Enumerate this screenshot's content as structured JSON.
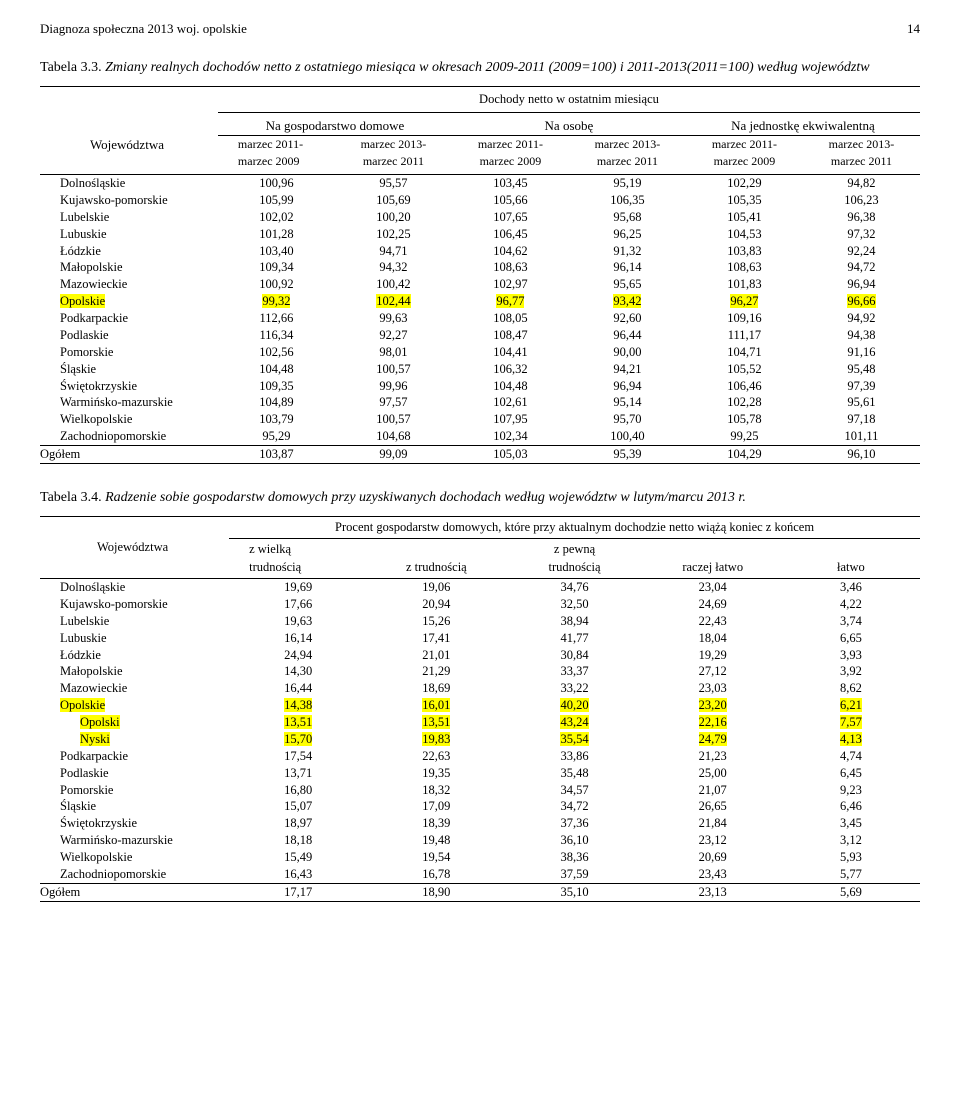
{
  "header": {
    "title": "Diagnoza społeczna 2013 woj. opolskie",
    "page": "14"
  },
  "table1": {
    "caption_num": "Tabela 3.3. ",
    "caption_text": "Zmiany realnych dochodów netto z ostatniego miesiąca w okresach 2009-2011 (2009=100) i 2011-2013(2011=100) według województw",
    "super_header": "Dochody netto w ostatnim miesiącu",
    "col1_label": "Województwa",
    "group_labels": [
      "Na gospodarstwo domowe",
      "Na osobę",
      "Na jednostkę ekwiwalentną"
    ],
    "period_a": "marzec 2011-\nmarzec 2009",
    "period_b": "marzec 2013-\nmarzec 2011",
    "rows": [
      {
        "name": "Dolnośląskie",
        "v": [
          "100,96",
          "95,57",
          "103,45",
          "95,19",
          "102,29",
          "94,82"
        ],
        "hl": [
          0,
          0,
          0,
          0,
          0,
          0
        ]
      },
      {
        "name": "Kujawsko-pomorskie",
        "v": [
          "105,99",
          "105,69",
          "105,66",
          "106,35",
          "105,35",
          "106,23"
        ],
        "hl": [
          0,
          0,
          0,
          0,
          0,
          0
        ]
      },
      {
        "name": "Lubelskie",
        "v": [
          "102,02",
          "100,20",
          "107,65",
          "95,68",
          "105,41",
          "96,38"
        ],
        "hl": [
          0,
          0,
          0,
          0,
          0,
          0
        ]
      },
      {
        "name": "Lubuskie",
        "v": [
          "101,28",
          "102,25",
          "106,45",
          "96,25",
          "104,53",
          "97,32"
        ],
        "hl": [
          0,
          0,
          0,
          0,
          0,
          0
        ]
      },
      {
        "name": "Łódzkie",
        "v": [
          "103,40",
          "94,71",
          "104,62",
          "91,32",
          "103,83",
          "92,24"
        ],
        "hl": [
          0,
          0,
          0,
          0,
          0,
          0
        ]
      },
      {
        "name": "Małopolskie",
        "v": [
          "109,34",
          "94,32",
          "108,63",
          "96,14",
          "108,63",
          "94,72"
        ],
        "hl": [
          0,
          0,
          0,
          0,
          0,
          0
        ]
      },
      {
        "name": "Mazowieckie",
        "v": [
          "100,92",
          "100,42",
          "102,97",
          "95,65",
          "101,83",
          "96,94"
        ],
        "hl": [
          0,
          0,
          0,
          0,
          0,
          0
        ]
      },
      {
        "name": "Opolskie",
        "v": [
          "99,32",
          "102,44",
          "96,77",
          "93,42",
          "96,27",
          "96,66"
        ],
        "hl": [
          1,
          1,
          1,
          1,
          1,
          1
        ],
        "nhl": 1
      },
      {
        "name": "Podkarpackie",
        "v": [
          "112,66",
          "99,63",
          "108,05",
          "92,60",
          "109,16",
          "94,92"
        ],
        "hl": [
          0,
          0,
          0,
          0,
          0,
          0
        ]
      },
      {
        "name": "Podlaskie",
        "v": [
          "116,34",
          "92,27",
          "108,47",
          "96,44",
          "111,17",
          "94,38"
        ],
        "hl": [
          0,
          0,
          0,
          0,
          0,
          0
        ]
      },
      {
        "name": "Pomorskie",
        "v": [
          "102,56",
          "98,01",
          "104,41",
          "90,00",
          "104,71",
          "91,16"
        ],
        "hl": [
          0,
          0,
          0,
          0,
          0,
          0
        ]
      },
      {
        "name": "Śląskie",
        "v": [
          "104,48",
          "100,57",
          "106,32",
          "94,21",
          "105,52",
          "95,48"
        ],
        "hl": [
          0,
          0,
          0,
          0,
          0,
          0
        ]
      },
      {
        "name": "Świętokrzyskie",
        "v": [
          "109,35",
          "99,96",
          "104,48",
          "96,94",
          "106,46",
          "97,39"
        ],
        "hl": [
          0,
          0,
          0,
          0,
          0,
          0
        ]
      },
      {
        "name": "Warmińsko-mazurskie",
        "v": [
          "104,89",
          "97,57",
          "102,61",
          "95,14",
          "102,28",
          "95,61"
        ],
        "hl": [
          0,
          0,
          0,
          0,
          0,
          0
        ]
      },
      {
        "name": "Wielkopolskie",
        "v": [
          "103,79",
          "100,57",
          "107,95",
          "95,70",
          "105,78",
          "97,18"
        ],
        "hl": [
          0,
          0,
          0,
          0,
          0,
          0
        ]
      },
      {
        "name": "Zachodniopomorskie",
        "v": [
          "95,29",
          "104,68",
          "102,34",
          "100,40",
          "99,25",
          "101,11"
        ],
        "hl": [
          0,
          0,
          0,
          0,
          0,
          0
        ]
      }
    ],
    "total": {
      "name": "Ogółem",
      "v": [
        "103,87",
        "99,09",
        "105,03",
        "95,39",
        "104,29",
        "96,10"
      ]
    }
  },
  "table2": {
    "caption_num": "Tabela 3.4. ",
    "caption_text": "Radzenie sobie gospodarstw domowych przy uzyskiwanych dochodach według województw w lutym/marcu 2013 r.",
    "header_main": "Procent gospodarstw domowych, które przy aktualnym dochodzie netto wiążą koniec z końcem",
    "col1_label": "Województwa",
    "cols": [
      "z wielką\ntrudnością",
      "z trudnością",
      "z pewną\ntrudnością",
      "raczej łatwo",
      "łatwo"
    ],
    "rows": [
      {
        "name": "Dolnośląskie",
        "v": [
          "19,69",
          "19,06",
          "34,76",
          "23,04",
          "3,46"
        ],
        "hl": [
          0,
          0,
          0,
          0,
          0
        ]
      },
      {
        "name": "Kujawsko-pomorskie",
        "v": [
          "17,66",
          "20,94",
          "32,50",
          "24,69",
          "4,22"
        ],
        "hl": [
          0,
          0,
          0,
          0,
          0
        ]
      },
      {
        "name": "Lubelskie",
        "v": [
          "19,63",
          "15,26",
          "38,94",
          "22,43",
          "3,74"
        ],
        "hl": [
          0,
          0,
          0,
          0,
          0
        ]
      },
      {
        "name": "Lubuskie",
        "v": [
          "16,14",
          "17,41",
          "41,77",
          "18,04",
          "6,65"
        ],
        "hl": [
          0,
          0,
          0,
          0,
          0
        ]
      },
      {
        "name": "Łódzkie",
        "v": [
          "24,94",
          "21,01",
          "30,84",
          "19,29",
          "3,93"
        ],
        "hl": [
          0,
          0,
          0,
          0,
          0
        ]
      },
      {
        "name": "Małopolskie",
        "v": [
          "14,30",
          "21,29",
          "33,37",
          "27,12",
          "3,92"
        ],
        "hl": [
          0,
          0,
          0,
          0,
          0
        ]
      },
      {
        "name": "Mazowieckie",
        "v": [
          "16,44",
          "18,69",
          "33,22",
          "23,03",
          "8,62"
        ],
        "hl": [
          0,
          0,
          0,
          0,
          0
        ]
      },
      {
        "name": "Opolskie",
        "v": [
          "14,38",
          "16,01",
          "40,20",
          "23,20",
          "6,21"
        ],
        "hl": [
          1,
          1,
          1,
          1,
          1
        ],
        "nhl": 1
      },
      {
        "name": "Opolski",
        "v": [
          "13,51",
          "13,51",
          "43,24",
          "22,16",
          "7,57"
        ],
        "hl": [
          1,
          1,
          1,
          1,
          1
        ],
        "nhl": 1,
        "indent": 1
      },
      {
        "name": "Nyski",
        "v": [
          "15,70",
          "19,83",
          "35,54",
          "24,79",
          "4,13"
        ],
        "hl": [
          1,
          1,
          1,
          1,
          1
        ],
        "nhl": 1,
        "indent": 1
      },
      {
        "name": "Podkarpackie",
        "v": [
          "17,54",
          "22,63",
          "33,86",
          "21,23",
          "4,74"
        ],
        "hl": [
          0,
          0,
          0,
          0,
          0
        ]
      },
      {
        "name": "Podlaskie",
        "v": [
          "13,71",
          "19,35",
          "35,48",
          "25,00",
          "6,45"
        ],
        "hl": [
          0,
          0,
          0,
          0,
          0
        ]
      },
      {
        "name": "Pomorskie",
        "v": [
          "16,80",
          "18,32",
          "34,57",
          "21,07",
          "9,23"
        ],
        "hl": [
          0,
          0,
          0,
          0,
          0
        ]
      },
      {
        "name": "Śląskie",
        "v": [
          "15,07",
          "17,09",
          "34,72",
          "26,65",
          "6,46"
        ],
        "hl": [
          0,
          0,
          0,
          0,
          0
        ]
      },
      {
        "name": "Świętokrzyskie",
        "v": [
          "18,97",
          "18,39",
          "37,36",
          "21,84",
          "3,45"
        ],
        "hl": [
          0,
          0,
          0,
          0,
          0
        ]
      },
      {
        "name": "Warmińsko-mazurskie",
        "v": [
          "18,18",
          "19,48",
          "36,10",
          "23,12",
          "3,12"
        ],
        "hl": [
          0,
          0,
          0,
          0,
          0
        ]
      },
      {
        "name": "Wielkopolskie",
        "v": [
          "15,49",
          "19,54",
          "38,36",
          "20,69",
          "5,93"
        ],
        "hl": [
          0,
          0,
          0,
          0,
          0
        ]
      },
      {
        "name": "Zachodniopomorskie",
        "v": [
          "16,43",
          "16,78",
          "37,59",
          "23,43",
          "5,77"
        ],
        "hl": [
          0,
          0,
          0,
          0,
          0
        ]
      }
    ],
    "total": {
      "name": "Ogółem",
      "v": [
        "17,17",
        "18,90",
        "35,10",
        "23,13",
        "5,69"
      ]
    }
  },
  "colors": {
    "highlight": "#ffff00",
    "text": "#000000",
    "bg": "#ffffff"
  }
}
